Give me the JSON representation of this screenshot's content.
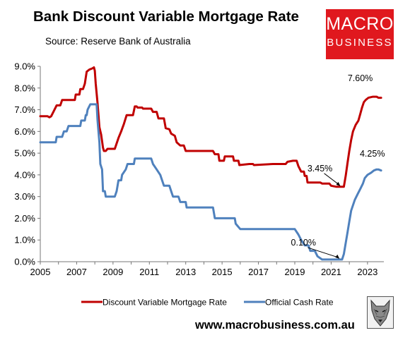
{
  "header": {
    "title": "Bank Discount Variable Mortgage Rate",
    "source": "Source: Reserve Bank of Australia"
  },
  "logo": {
    "line1": "MACRO",
    "line2": "BUSINESS",
    "color": "#e0181e"
  },
  "footer": {
    "website": "www.macrobusiness.com.au"
  },
  "chart_data": {
    "type": "line",
    "title": "Bank Discount Variable Mortgage Rate",
    "xlabel": "",
    "ylabel": "",
    "xlim": [
      2005,
      2023.9
    ],
    "ylim": [
      0,
      9
    ],
    "y_ticks": [
      "0.0%",
      "1.0%",
      "2.0%",
      "3.0%",
      "4.0%",
      "5.0%",
      "6.0%",
      "7.0%",
      "8.0%",
      "9.0%"
    ],
    "x_ticks": [
      "2005",
      "2007",
      "2009",
      "2011",
      "2013",
      "2015",
      "2017",
      "2019",
      "2021",
      "2023"
    ],
    "grid": false,
    "legend_position": "bottom",
    "series": [
      {
        "name": "Discount Variable Mortgage Rate",
        "color": "#c00000",
        "points": [
          [
            2005.0,
            6.7
          ],
          [
            2005.4,
            6.7
          ],
          [
            2005.5,
            6.65
          ],
          [
            2005.6,
            6.7
          ],
          [
            2005.75,
            6.95
          ],
          [
            2005.9,
            7.2
          ],
          [
            2006.1,
            7.2
          ],
          [
            2006.2,
            7.45
          ],
          [
            2006.4,
            7.45
          ],
          [
            2006.9,
            7.45
          ],
          [
            2006.95,
            7.7
          ],
          [
            2007.15,
            7.7
          ],
          [
            2007.2,
            7.95
          ],
          [
            2007.35,
            7.95
          ],
          [
            2007.45,
            8.2
          ],
          [
            2007.55,
            8.75
          ],
          [
            2007.7,
            8.85
          ],
          [
            2007.85,
            8.9
          ],
          [
            2007.95,
            8.95
          ],
          [
            2008.0,
            8.8
          ],
          [
            2008.05,
            8.2
          ],
          [
            2008.15,
            7.3
          ],
          [
            2008.25,
            6.2
          ],
          [
            2008.35,
            5.85
          ],
          [
            2008.45,
            5.25
          ],
          [
            2008.5,
            5.1
          ],
          [
            2008.6,
            5.1
          ],
          [
            2008.7,
            5.2
          ],
          [
            2009.1,
            5.2
          ],
          [
            2009.3,
            5.7
          ],
          [
            2009.45,
            6.0
          ],
          [
            2009.6,
            6.35
          ],
          [
            2009.75,
            6.75
          ],
          [
            2010.1,
            6.75
          ],
          [
            2010.2,
            7.15
          ],
          [
            2010.3,
            7.15
          ],
          [
            2010.35,
            7.1
          ],
          [
            2010.6,
            7.1
          ],
          [
            2010.65,
            7.05
          ],
          [
            2011.1,
            7.05
          ],
          [
            2011.2,
            6.9
          ],
          [
            2011.4,
            6.9
          ],
          [
            2011.5,
            6.6
          ],
          [
            2011.8,
            6.6
          ],
          [
            2011.9,
            6.15
          ],
          [
            2012.1,
            6.1
          ],
          [
            2012.2,
            5.9
          ],
          [
            2012.4,
            5.8
          ],
          [
            2012.5,
            5.5
          ],
          [
            2012.7,
            5.35
          ],
          [
            2012.9,
            5.35
          ],
          [
            2013.0,
            5.1
          ],
          [
            2013.5,
            5.1
          ],
          [
            2014.0,
            5.1
          ],
          [
            2014.5,
            5.1
          ],
          [
            2014.6,
            4.95
          ],
          [
            2014.8,
            4.95
          ],
          [
            2014.85,
            4.65
          ],
          [
            2015.1,
            4.65
          ],
          [
            2015.15,
            4.85
          ],
          [
            2015.6,
            4.85
          ],
          [
            2015.65,
            4.65
          ],
          [
            2015.9,
            4.65
          ],
          [
            2015.95,
            4.45
          ],
          [
            2016.5,
            4.5
          ],
          [
            2016.7,
            4.5
          ],
          [
            2016.75,
            4.45
          ],
          [
            2017.8,
            4.5
          ],
          [
            2018.5,
            4.5
          ],
          [
            2018.6,
            4.6
          ],
          [
            2018.9,
            4.65
          ],
          [
            2019.1,
            4.65
          ],
          [
            2019.2,
            4.4
          ],
          [
            2019.35,
            4.15
          ],
          [
            2019.5,
            4.15
          ],
          [
            2019.55,
            3.95
          ],
          [
            2019.65,
            3.95
          ],
          [
            2019.7,
            3.65
          ],
          [
            2020.4,
            3.65
          ],
          [
            2020.5,
            3.6
          ],
          [
            2020.9,
            3.6
          ],
          [
            2021.0,
            3.5
          ],
          [
            2021.3,
            3.45
          ],
          [
            2021.55,
            3.45
          ],
          [
            2021.7,
            3.45
          ],
          [
            2021.8,
            3.95
          ],
          [
            2021.9,
            4.55
          ],
          [
            2022.0,
            5.1
          ],
          [
            2022.1,
            5.6
          ],
          [
            2022.2,
            6.0
          ],
          [
            2022.35,
            6.3
          ],
          [
            2022.5,
            6.5
          ],
          [
            2022.6,
            6.8
          ],
          [
            2022.7,
            7.1
          ],
          [
            2022.8,
            7.35
          ],
          [
            2022.9,
            7.45
          ],
          [
            2023.05,
            7.55
          ],
          [
            2023.3,
            7.6
          ],
          [
            2023.5,
            7.6
          ],
          [
            2023.6,
            7.55
          ],
          [
            2023.75,
            7.55
          ]
        ]
      },
      {
        "name": "Official Cash Rate",
        "color": "#4f81bd",
        "points": [
          [
            2005.0,
            5.5
          ],
          [
            2005.85,
            5.5
          ],
          [
            2005.9,
            5.75
          ],
          [
            2006.2,
            5.75
          ],
          [
            2006.3,
            6.0
          ],
          [
            2006.45,
            6.0
          ],
          [
            2006.55,
            6.25
          ],
          [
            2006.75,
            6.25
          ],
          [
            2007.2,
            6.25
          ],
          [
            2007.25,
            6.5
          ],
          [
            2007.45,
            6.5
          ],
          [
            2007.5,
            6.75
          ],
          [
            2007.55,
            6.75
          ],
          [
            2007.6,
            7.0
          ],
          [
            2007.75,
            7.25
          ],
          [
            2008.0,
            7.25
          ],
          [
            2008.1,
            7.25
          ],
          [
            2008.15,
            6.5
          ],
          [
            2008.25,
            5.5
          ],
          [
            2008.3,
            4.5
          ],
          [
            2008.4,
            4.25
          ],
          [
            2008.45,
            3.25
          ],
          [
            2008.55,
            3.25
          ],
          [
            2008.6,
            3.0
          ],
          [
            2009.1,
            3.0
          ],
          [
            2009.2,
            3.25
          ],
          [
            2009.3,
            3.75
          ],
          [
            2009.45,
            3.75
          ],
          [
            2009.5,
            4.0
          ],
          [
            2009.7,
            4.25
          ],
          [
            2009.8,
            4.5
          ],
          [
            2010.15,
            4.5
          ],
          [
            2010.2,
            4.75
          ],
          [
            2010.7,
            4.75
          ],
          [
            2011.05,
            4.75
          ],
          [
            2011.1,
            4.75
          ],
          [
            2011.2,
            4.5
          ],
          [
            2011.4,
            4.25
          ],
          [
            2011.6,
            4.0
          ],
          [
            2011.7,
            3.75
          ],
          [
            2011.8,
            3.5
          ],
          [
            2012.1,
            3.5
          ],
          [
            2012.2,
            3.25
          ],
          [
            2012.3,
            3.0
          ],
          [
            2012.6,
            3.0
          ],
          [
            2012.7,
            2.75
          ],
          [
            2013.0,
            2.75
          ],
          [
            2013.05,
            2.5
          ],
          [
            2013.5,
            2.5
          ],
          [
            2014.0,
            2.5
          ],
          [
            2014.5,
            2.5
          ],
          [
            2014.55,
            2.25
          ],
          [
            2014.6,
            2.0
          ],
          [
            2015.0,
            2.0
          ],
          [
            2015.5,
            2.0
          ],
          [
            2015.7,
            2.0
          ],
          [
            2015.75,
            1.75
          ],
          [
            2016.0,
            1.5
          ],
          [
            2016.5,
            1.5
          ],
          [
            2017.0,
            1.5
          ],
          [
            2018.0,
            1.5
          ],
          [
            2018.5,
            1.5
          ],
          [
            2018.9,
            1.5
          ],
          [
            2019.0,
            1.5
          ],
          [
            2019.2,
            1.25
          ],
          [
            2019.35,
            1.0
          ],
          [
            2019.55,
            0.75
          ],
          [
            2019.75,
            0.75
          ],
          [
            2019.85,
            0.5
          ],
          [
            2020.1,
            0.5
          ],
          [
            2020.25,
            0.25
          ],
          [
            2020.5,
            0.1
          ],
          [
            2020.6,
            0.1
          ],
          [
            2020.75,
            0.1
          ],
          [
            2021.0,
            0.1
          ],
          [
            2021.5,
            0.1
          ],
          [
            2021.6,
            0.1
          ],
          [
            2021.7,
            0.35
          ],
          [
            2021.8,
            0.85
          ],
          [
            2021.9,
            1.35
          ],
          [
            2022.0,
            1.85
          ],
          [
            2022.1,
            2.35
          ],
          [
            2022.2,
            2.6
          ],
          [
            2022.3,
            2.85
          ],
          [
            2022.45,
            3.1
          ],
          [
            2022.6,
            3.35
          ],
          [
            2022.75,
            3.6
          ],
          [
            2022.85,
            3.85
          ],
          [
            2023.0,
            4.0
          ],
          [
            2023.2,
            4.1
          ],
          [
            2023.35,
            4.2
          ],
          [
            2023.5,
            4.25
          ],
          [
            2023.6,
            4.25
          ],
          [
            2023.75,
            4.2
          ]
        ]
      }
    ],
    "annotations": [
      {
        "text": "7.60%",
        "x": 2023.3,
        "y": 7.6
      },
      {
        "text": "3.45%",
        "x": 2021.55,
        "y": 3.45
      },
      {
        "text": "4.25%",
        "x": 2023.5,
        "y": 4.25
      },
      {
        "text": "0.10%",
        "x": 2021.5,
        "y": 0.1
      }
    ]
  }
}
